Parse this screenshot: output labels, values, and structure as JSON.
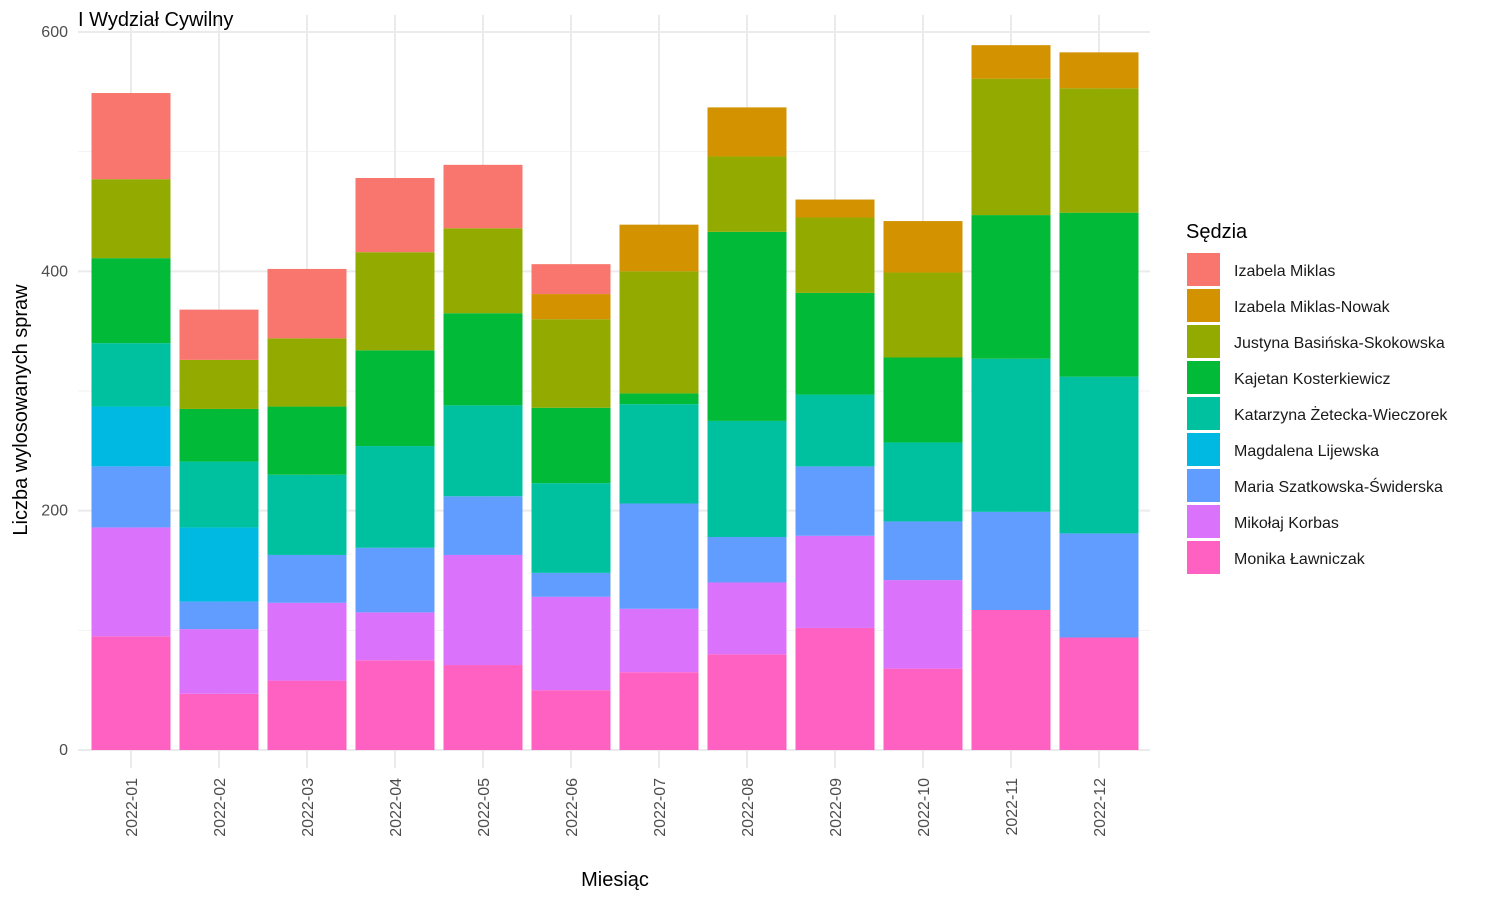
{
  "chart_data": {
    "type": "bar",
    "stacked": true,
    "title": "I Wydział Cywilny",
    "xlabel": "Miesiąc",
    "ylabel": "Liczba wylosowanych spraw",
    "ylim": [
      0,
      600
    ],
    "yticks": [
      0,
      200,
      400,
      600
    ],
    "grid": true,
    "legend_position": "right",
    "legend_title": "Sędzia",
    "categories": [
      "2022-01",
      "2022-02",
      "2022-03",
      "2022-04",
      "2022-05",
      "2022-06",
      "2022-07",
      "2022-08",
      "2022-09",
      "2022-10",
      "2022-11",
      "2022-12"
    ],
    "series": [
      {
        "name": "Izabela Miklas",
        "color": "#F8766D",
        "values": [
          72,
          42,
          58,
          62,
          53,
          25,
          0,
          0,
          0,
          0,
          0,
          0
        ]
      },
      {
        "name": "Izabela Miklas-Nowak",
        "color": "#D39200",
        "values": [
          0,
          0,
          0,
          0,
          0,
          21,
          39,
          41,
          15,
          43,
          28,
          30
        ]
      },
      {
        "name": "Justyna Basińska-Skokowska",
        "color": "#93AA00",
        "values": [
          66,
          41,
          57,
          82,
          71,
          74,
          102,
          63,
          63,
          71,
          114,
          104
        ]
      },
      {
        "name": "Kajetan Kosterkiewicz",
        "color": "#00BA38",
        "values": [
          71,
          44,
          57,
          80,
          77,
          63,
          9,
          158,
          85,
          71,
          120,
          137
        ]
      },
      {
        "name": "Katarzyna Żetecka-Wieczorek",
        "color": "#00C19F",
        "values": [
          53,
          55,
          67,
          85,
          76,
          75,
          83,
          97,
          60,
          66,
          128,
          131
        ]
      },
      {
        "name": "Magdalena Lijewska",
        "color": "#00B9E3",
        "values": [
          50,
          62,
          0,
          0,
          0,
          0,
          0,
          0,
          0,
          0,
          0,
          0
        ]
      },
      {
        "name": "Maria Szatkowska-Świderska",
        "color": "#619CFF",
        "values": [
          51,
          23,
          40,
          54,
          49,
          20,
          88,
          38,
          58,
          49,
          82,
          87
        ]
      },
      {
        "name": "Mikołaj Korbas",
        "color": "#DB72FB",
        "values": [
          91,
          54,
          65,
          40,
          92,
          78,
          53,
          60,
          77,
          74,
          0,
          0
        ]
      },
      {
        "name": "Monika Ławniczak",
        "color": "#FF61C3",
        "values": [
          95,
          47,
          58,
          75,
          71,
          50,
          65,
          80,
          102,
          68,
          117,
          94
        ]
      }
    ]
  }
}
